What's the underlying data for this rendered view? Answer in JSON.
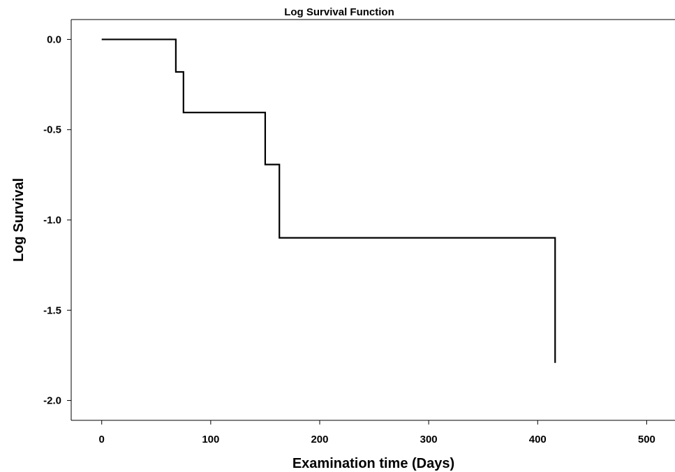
{
  "chart_data": {
    "type": "line",
    "step": true,
    "title": "Log Survival Function",
    "xlabel": "Examination time (Days)",
    "ylabel": "Log Survival",
    "xlim": [
      -28,
      526
    ],
    "ylim": [
      -2.11,
      0.11
    ],
    "xticks": [
      0,
      100,
      200,
      300,
      400,
      500
    ],
    "xtick_labels": [
      "0",
      "100",
      "200",
      "300",
      "400",
      "500"
    ],
    "yticks": [
      0.0,
      -0.5,
      -1.0,
      -1.5,
      -2.0
    ],
    "ytick_labels": [
      "0.0",
      "-0.5",
      "-1.0",
      "-1.5",
      "-2.0"
    ],
    "grid": false,
    "legend": "none",
    "line_color": "#000000",
    "series": [
      {
        "points": [
          {
            "x": 0,
            "y": 0.0
          },
          {
            "x": 68,
            "y": -0.18
          },
          {
            "x": 75,
            "y": -0.405
          },
          {
            "x": 150,
            "y": -0.693
          },
          {
            "x": 163,
            "y": -1.099
          },
          {
            "x": 416,
            "y": -1.792
          }
        ]
      }
    ]
  }
}
